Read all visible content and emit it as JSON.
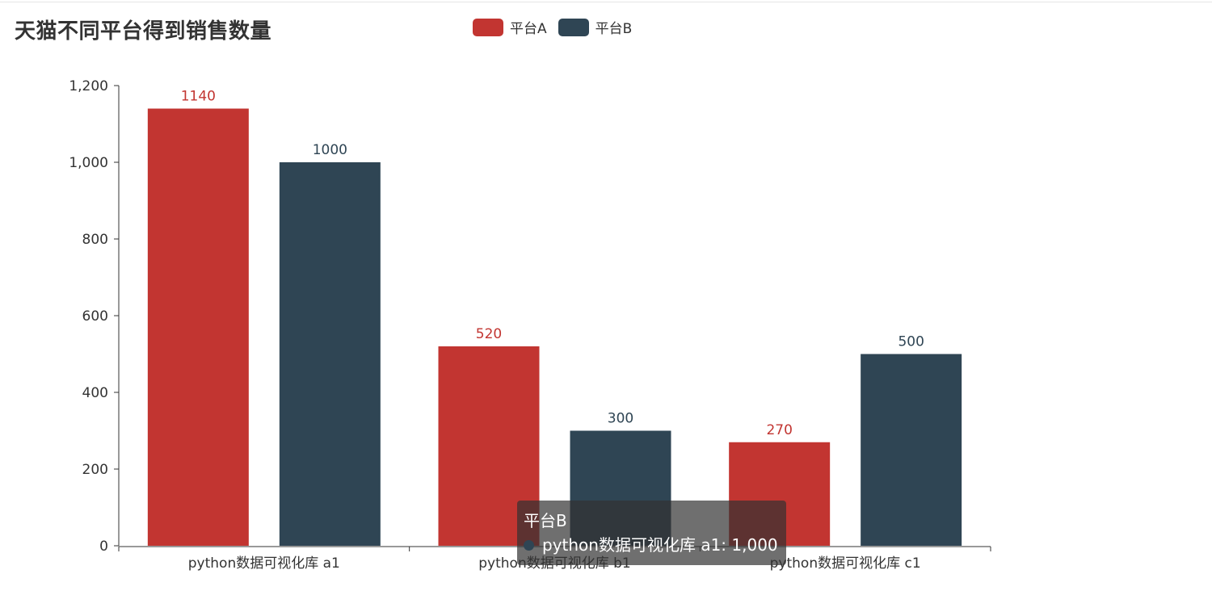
{
  "chart_data": {
    "type": "bar",
    "title": "天猫不同平台得到销售数量",
    "categories": [
      "python数据可视化库 a1",
      "python数据可视化库 b1",
      "python数据可视化库 c1"
    ],
    "series": [
      {
        "name": "平台A",
        "values": [
          1140,
          520,
          270
        ],
        "color": "#c23531"
      },
      {
        "name": "平台B",
        "values": [
          1000,
          300,
          500
        ],
        "color": "#2f4554"
      }
    ],
    "ylim": [
      0,
      1200
    ],
    "yticks": [
      "0",
      "200",
      "400",
      "600",
      "800",
      "1,000",
      "1,200"
    ],
    "ytick_values": [
      0,
      200,
      400,
      600,
      800,
      1000,
      1200
    ],
    "xlabel": "",
    "ylabel": "",
    "grid": false,
    "legend_position": "top-center",
    "data_labels": true
  },
  "tooltip": {
    "title": "平台B",
    "item": "python数据可视化库 a1: 1,000",
    "dot_color": "#2f4554"
  }
}
